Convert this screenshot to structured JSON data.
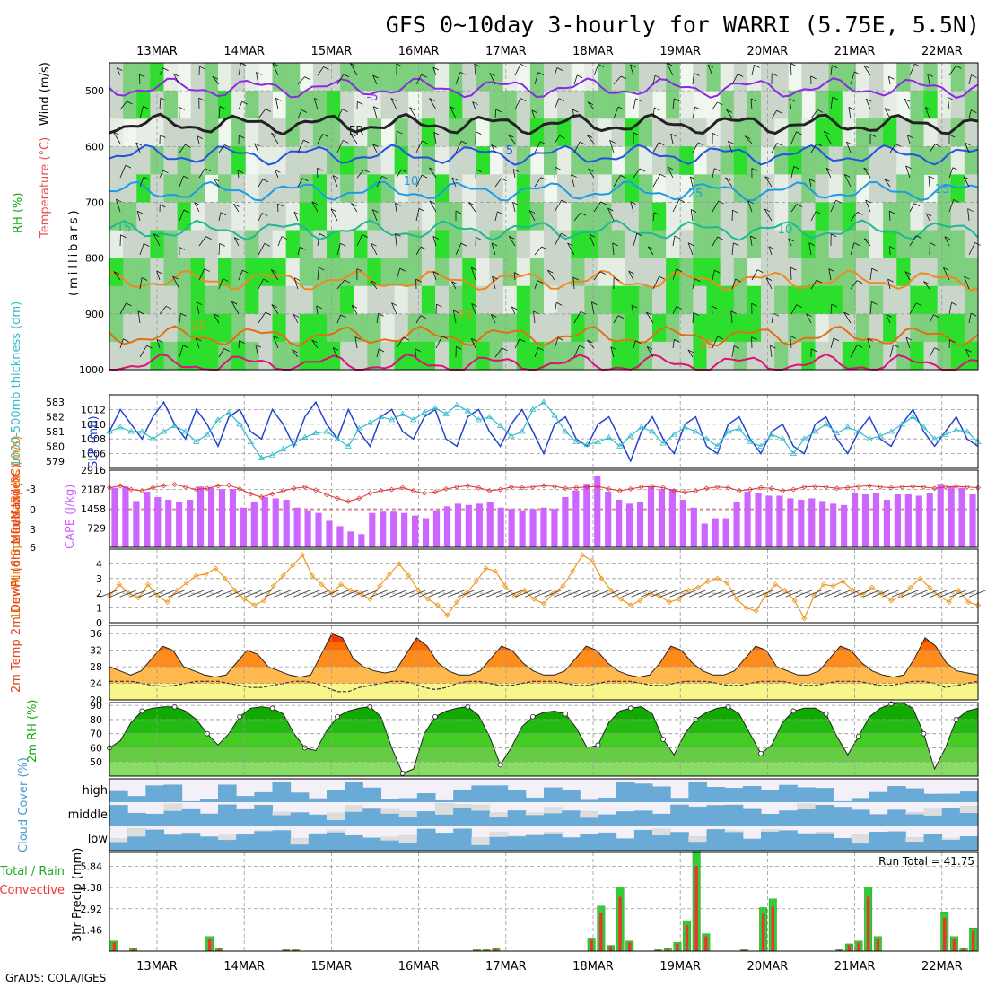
{
  "title": "GFS 0~10day 3-hourly for WARRI (5.75E, 5.5N)",
  "footer": "GrADS: COLA/IGES",
  "dates": [
    "13MAR",
    "14MAR",
    "15MAR",
    "16MAR",
    "17MAR",
    "18MAR",
    "19MAR",
    "20MAR",
    "21MAR",
    "22MAR"
  ],
  "colors": {
    "rh_green": "#33cc33",
    "temp": "#ff6600",
    "cape": "#cc66ff",
    "slp": "#2244cc",
    "thick": "#33bbcc",
    "precip_total": "#33cc33",
    "precip_conv": "#ee3333",
    "cloud": "#6aaad6"
  },
  "chart_data": [
    {
      "type": "heatmap",
      "name": "upper-air",
      "ylabel_parts": [
        "RH (%)",
        "Temperature (°C)",
        "Wind (m/s)"
      ],
      "ylabel_mb": "(millibars)",
      "yticks": [
        500,
        600,
        700,
        800,
        900,
        1000
      ],
      "ylim": [
        1000,
        450
      ],
      "contour_labels": [
        "-5",
        "FR",
        "5",
        "10",
        "15",
        "20",
        "25",
        "25",
        "25",
        "10",
        "15"
      ],
      "isotherms": [
        {
          "label": "-5",
          "level": 495
        },
        {
          "label": "FR",
          "level": 560
        },
        {
          "label": "5",
          "level": 615
        },
        {
          "label": "10",
          "level": 680
        },
        {
          "label": "15",
          "level": 750
        },
        {
          "label": "20",
          "level": 840
        },
        {
          "label": "25",
          "level": 940
        },
        {
          "label": "30",
          "level": 990
        }
      ]
    },
    {
      "type": "line",
      "name": "slp-thickness",
      "ylabel_left": "1000-500mb thickness (dm)",
      "ylabel_right": "SLP (mb)",
      "thickness_ticks": [
        583,
        582,
        581,
        580,
        579
      ],
      "slp_ticks": [
        1012,
        1010,
        1008,
        1006
      ],
      "slp_ylim": [
        1004,
        1014
      ],
      "series": [
        {
          "name": "SLP",
          "values": [
            1009,
            1012,
            1010,
            1008,
            1011,
            1013,
            1010,
            1008,
            1012,
            1010,
            1007,
            1011,
            1012,
            1009,
            1008,
            1012,
            1010,
            1007,
            1011,
            1013,
            1010,
            1008,
            1012,
            1009,
            1007,
            1011,
            1012,
            1009,
            1008,
            1011,
            1012,
            1008,
            1007,
            1011,
            1012,
            1009,
            1007,
            1010,
            1012,
            1009,
            1006,
            1010,
            1011,
            1008,
            1007,
            1010,
            1011,
            1008,
            1005,
            1009,
            1011,
            1008,
            1006,
            1010,
            1011,
            1007,
            1006,
            1010,
            1011,
            1008,
            1006,
            1009,
            1010,
            1007,
            1006,
            1010,
            1011,
            1008,
            1006,
            1009,
            1011,
            1008,
            1007,
            1010,
            1012,
            1009,
            1007,
            1009,
            1011,
            1008,
            1007
          ]
        },
        {
          "name": "1000-500mb thickness",
          "values": [
            581,
            581.3,
            581,
            581,
            580.5,
            581,
            581.4,
            581,
            580.3,
            580.8,
            581.8,
            582.3,
            581.5,
            580.3,
            579.2,
            579.4,
            579.8,
            580.2,
            580.6,
            580.9,
            581.0,
            580.5,
            580.0,
            581.2,
            581.6,
            582.0,
            581.8,
            582.2,
            581.8,
            582.3,
            582.6,
            582.2,
            582.8,
            582.4,
            581.8,
            582.0,
            581.4,
            580.7,
            581.0,
            582.5,
            583.0,
            582.1,
            581.0,
            580.3,
            580.1,
            580.3,
            580.6,
            580.0,
            580.7,
            581.3,
            581.0,
            580.2,
            580.8,
            581.3,
            581.0,
            580.5,
            580.0,
            581.0,
            581.2,
            580.3,
            580.0,
            580.8,
            580.5,
            579.5,
            580.5,
            581.0,
            581.5,
            580.9,
            581.3,
            581.0,
            580.5,
            580.7,
            581.0,
            581.5,
            582.0,
            581.3,
            580.5,
            580.8,
            581.1,
            581.0,
            580.3
          ]
        }
      ]
    },
    {
      "type": "bar",
      "name": "cape-li",
      "ylabel_left": "Lifted Index",
      "ylabel_right": "CAPE (J/kg)",
      "li_ticks": [
        "-3",
        "0",
        "3",
        "6"
      ],
      "cape_ticks": [
        2916,
        2187,
        1458,
        729
      ],
      "cape_ylim": [
        0,
        2916
      ],
      "cape": [
        2250,
        2300,
        1750,
        2100,
        1900,
        1800,
        1700,
        1800,
        2300,
        2250,
        2200,
        2200,
        1500,
        1700,
        1900,
        1850,
        1800,
        1500,
        1400,
        1300,
        1000,
        800,
        600,
        500,
        1300,
        1350,
        1350,
        1300,
        1200,
        1100,
        1400,
        1550,
        1650,
        1600,
        1650,
        1700,
        1500,
        1450,
        1400,
        1450,
        1500,
        1450,
        1900,
        2150,
        2400,
        2700,
        2100,
        1800,
        1650,
        1700,
        2300,
        2200,
        2200,
        1800,
        1500,
        900,
        1100,
        1100,
        1700,
        2100,
        2050,
        1950,
        1950,
        1850,
        1800,
        1850,
        1750,
        1650,
        1600,
        2050,
        2000,
        2050,
        1800,
        2000,
        2000,
        1950,
        2050,
        2400,
        2300,
        2250,
        2000
      ],
      "li": [
        -3.5,
        -3.8,
        -3.2,
        -3.0,
        -3.5,
        -3.8,
        -4.0,
        -3.6,
        -3.2,
        -3.4,
        -3.8,
        -3.9,
        -3.3,
        -2.5,
        -2.0,
        -2.5,
        -3.0,
        -3.4,
        -3.6,
        -3.1,
        -2.4,
        -1.8,
        -1.3,
        -1.8,
        -2.6,
        -3.0,
        -3.2,
        -3.5,
        -3.0,
        -2.6,
        -2.8,
        -3.3,
        -3.6,
        -3.8,
        -3.5,
        -3.0,
        -3.2,
        -3.6,
        -3.5,
        -3.6,
        -3.8,
        -3.7,
        -3.4,
        -3.5,
        -3.6,
        -3.7,
        -3.3,
        -3.0,
        -3.3,
        -3.6,
        -3.7,
        -3.5,
        -3.0,
        -2.8,
        -3.0,
        -3.4,
        -3.6,
        -3.5,
        -3.0,
        -3.2,
        -3.5,
        -3.4,
        -3.0,
        -3.2,
        -3.6,
        -3.7,
        -3.6,
        -3.4,
        -3.5,
        -3.7,
        -3.8,
        -3.6,
        -3.5,
        -3.6,
        -3.7,
        -3.6,
        -3.4,
        -3.6,
        -3.7,
        -3.6,
        -3.5
      ]
    },
    {
      "type": "line",
      "name": "wind10m",
      "ylabel": "10m Wind Speed & Barbs (m/s)",
      "yticks": [
        4,
        3,
        2,
        1,
        0
      ],
      "ylim": [
        0,
        5
      ],
      "values": [
        1.8,
        2.6,
        2.0,
        1.7,
        2.6,
        1.8,
        1.4,
        2.2,
        2.7,
        3.2,
        3.3,
        3.7,
        3.0,
        2.2,
        1.6,
        1.2,
        1.5,
        2.5,
        3.2,
        3.9,
        4.6,
        3.2,
        2.6,
        2.0,
        2.6,
        2.2,
        2.0,
        1.6,
        2.5,
        3.3,
        4.0,
        3.2,
        2.2,
        1.6,
        1.2,
        0.5,
        1.4,
        2.0,
        2.8,
        3.7,
        3.5,
        2.5,
        1.8,
        2.2,
        1.6,
        1.3,
        2.0,
        2.5,
        3.5,
        4.6,
        4.2,
        3.0,
        2.2,
        1.6,
        1.2,
        1.5,
        2.0,
        1.8,
        1.4,
        1.6,
        2.2,
        2.4,
        2.8,
        3.0,
        2.7,
        1.6,
        1.0,
        0.8,
        1.9,
        2.6,
        2.2,
        1.5,
        0.3,
        1.8,
        2.6,
        2.5,
        2.8,
        2.2,
        1.9,
        2.4,
        2.0,
        1.5,
        1.8,
        2.4,
        3.0,
        2.4,
        1.8,
        1.4,
        2.2,
        1.4,
        1.2
      ]
    },
    {
      "type": "area",
      "name": "temp-dewpoint",
      "ylabel": "2m Temp 2m DewPt (6hr Min/Max) (°C)",
      "yticks": [
        36,
        32,
        28,
        24,
        20
      ],
      "ylim": [
        20,
        38
      ],
      "temp": [
        28,
        27,
        26,
        27,
        30,
        33,
        32,
        28,
        27,
        26,
        25.5,
        26,
        29,
        32,
        31,
        28,
        27,
        26,
        25.5,
        26,
        31,
        36,
        35,
        30,
        28,
        27,
        26.5,
        27,
        31,
        35,
        33,
        29,
        27,
        26,
        26,
        27,
        30,
        33,
        32,
        29,
        27,
        26,
        26,
        27,
        30,
        33,
        32,
        29,
        27,
        26,
        25.5,
        26,
        29,
        33,
        32,
        29,
        27,
        26,
        26,
        27,
        30,
        33,
        32,
        28,
        27,
        26,
        26,
        27,
        30,
        33,
        32,
        29,
        27,
        26,
        25.5,
        26,
        30,
        35,
        33,
        29,
        27,
        26.5,
        26
      ],
      "dewpt": [
        24.5,
        24.5,
        24.5,
        24,
        23.5,
        23.3,
        23.5,
        24,
        24.5,
        24.5,
        24.5,
        24,
        23.5,
        23,
        23,
        23.5,
        24,
        24.5,
        24.5,
        24,
        23,
        22,
        22,
        23,
        23.5,
        24,
        24.5,
        24.5,
        24,
        23,
        22.5,
        23,
        24,
        24.5,
        24.5,
        24,
        23.5,
        23.5,
        24,
        24.5,
        24.5,
        24.5,
        24,
        23.5,
        23.5,
        24,
        24.5,
        24.5,
        24.5,
        24,
        23.5,
        23.5,
        24,
        24.5,
        24.5,
        24.5,
        24,
        23.5,
        23.5,
        24,
        24.5,
        24.5,
        24.5,
        24,
        23.5,
        23.5,
        24,
        24.5,
        24.5,
        24.5,
        24,
        23.5,
        23.5,
        24,
        24.5,
        24.5,
        24,
        23,
        23.5,
        24,
        24.5
      ]
    },
    {
      "type": "area",
      "name": "rh2m",
      "ylabel": "2m RH (%)",
      "yticks": [
        90,
        80,
        70,
        60,
        50
      ],
      "ylim": [
        40,
        92
      ],
      "values": [
        60,
        65,
        78,
        86,
        88,
        89,
        89,
        86,
        80,
        70,
        62,
        70,
        82,
        88,
        89,
        88,
        84,
        70,
        60,
        58,
        72,
        82,
        86,
        88,
        89,
        82,
        60,
        42,
        45,
        70,
        82,
        86,
        88,
        89,
        83,
        68,
        48,
        60,
        75,
        82,
        85,
        86,
        84,
        74,
        60,
        62,
        78,
        86,
        88,
        89,
        84,
        66,
        55,
        70,
        80,
        85,
        88,
        89,
        84,
        70,
        56,
        62,
        78,
        86,
        88,
        88,
        84,
        68,
        55,
        68,
        82,
        88,
        91,
        92,
        88,
        70,
        45,
        60,
        80,
        86,
        88
      ]
    },
    {
      "type": "area",
      "name": "cloud-cover",
      "ylabel": "Cloud Cover (%)",
      "levels": [
        "high",
        "middle",
        "low"
      ]
    },
    {
      "type": "bar",
      "name": "precip",
      "ylabel": "3hr Precip (mm)",
      "legend_left": "Total / Rain",
      "legend_conv": "Convective",
      "run_total_label": "Run Total = 41.75",
      "yticks": [
        5.84,
        4.38,
        2.92,
        1.46
      ],
      "ylim": [
        0,
        6.8
      ],
      "values": [
        0.7,
        0,
        0.2,
        0,
        0,
        0,
        0,
        0,
        0,
        0,
        1.0,
        0.2,
        0,
        0,
        0,
        0,
        0,
        0,
        0.1,
        0.1,
        0,
        0,
        0,
        0,
        0,
        0,
        0,
        0,
        0,
        0,
        0,
        0,
        0,
        0,
        0,
        0,
        0,
        0,
        0.1,
        0.1,
        0.2,
        0,
        0,
        0,
        0,
        0,
        0,
        0,
        0,
        0,
        0.9,
        3.1,
        0.4,
        4.4,
        0.7,
        0,
        0,
        0.1,
        0.2,
        0.6,
        2.1,
        6.9,
        1.2,
        0,
        0,
        0,
        0.1,
        0,
        3.0,
        3.6,
        0,
        0,
        0,
        0,
        0,
        0,
        0.1,
        0.5,
        0.7,
        4.4,
        1.0,
        0,
        0,
        0,
        0,
        0,
        0,
        2.7,
        1.0,
        0.2,
        1.6
      ]
    }
  ]
}
